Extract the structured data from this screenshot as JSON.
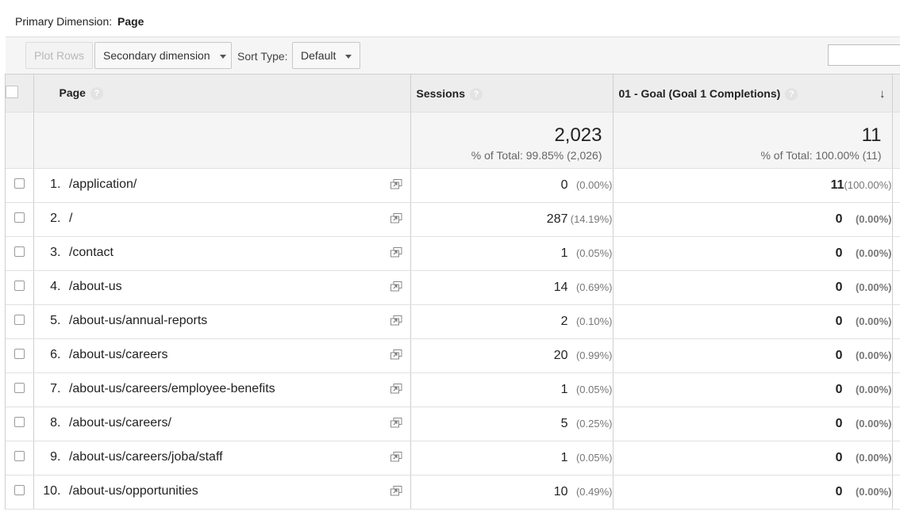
{
  "primary_dimension": {
    "label": "Primary Dimension:",
    "value": "Page"
  },
  "toolbar": {
    "plot_rows": "Plot Rows",
    "secondary_dimension": "Secondary dimension",
    "sort_type_label": "Sort Type:",
    "sort_type_value": "Default"
  },
  "columns": {
    "page": "Page",
    "sessions": "Sessions",
    "goal": "01 - Goal (Goal 1 Completions)"
  },
  "totals": {
    "sessions": "2,023",
    "sessions_sub": "% of Total: 99.85% (2,026)",
    "goal": "11",
    "goal_sub": "% of Total: 100.00% (11)"
  },
  "rows": [
    {
      "index": "1.",
      "page": "/application/",
      "sessions": "0",
      "sessions_pct": "(0.00%)",
      "goal": "11",
      "goal_pct": "(100.00%)"
    },
    {
      "index": "2.",
      "page": "/",
      "sessions": "287",
      "sessions_pct": "(14.19%)",
      "goal": "0",
      "goal_pct": "(0.00%)"
    },
    {
      "index": "3.",
      "page": "/contact",
      "sessions": "1",
      "sessions_pct": "(0.05%)",
      "goal": "0",
      "goal_pct": "(0.00%)"
    },
    {
      "index": "4.",
      "page": "/about-us",
      "sessions": "14",
      "sessions_pct": "(0.69%)",
      "goal": "0",
      "goal_pct": "(0.00%)"
    },
    {
      "index": "5.",
      "page": "/about-us/annual-reports",
      "sessions": "2",
      "sessions_pct": "(0.10%)",
      "goal": "0",
      "goal_pct": "(0.00%)"
    },
    {
      "index": "6.",
      "page": "/about-us/careers",
      "sessions": "20",
      "sessions_pct": "(0.99%)",
      "goal": "0",
      "goal_pct": "(0.00%)"
    },
    {
      "index": "7.",
      "page": "/about-us/careers/employee-benefits",
      "sessions": "1",
      "sessions_pct": "(0.05%)",
      "goal": "0",
      "goal_pct": "(0.00%)"
    },
    {
      "index": "8.",
      "page": "/about-us/careers/",
      "sessions": "5",
      "sessions_pct": "(0.25%)",
      "goal": "0",
      "goal_pct": "(0.00%)"
    },
    {
      "index": "9.",
      "page": "/about-us/careers/joba/staff",
      "sessions": "1",
      "sessions_pct": "(0.05%)",
      "goal": "0",
      "goal_pct": "(0.00%)"
    },
    {
      "index": "10.",
      "page": "/about-us/opportunities",
      "sessions": "10",
      "sessions_pct": "(0.49%)",
      "goal": "0",
      "goal_pct": "(0.00%)"
    }
  ],
  "icons": {
    "help": "help-circle-icon",
    "open_external": "open-in-new-window-icon",
    "sort": "sort-descending-arrow-icon",
    "dropdown": "chevron-down-icon"
  }
}
